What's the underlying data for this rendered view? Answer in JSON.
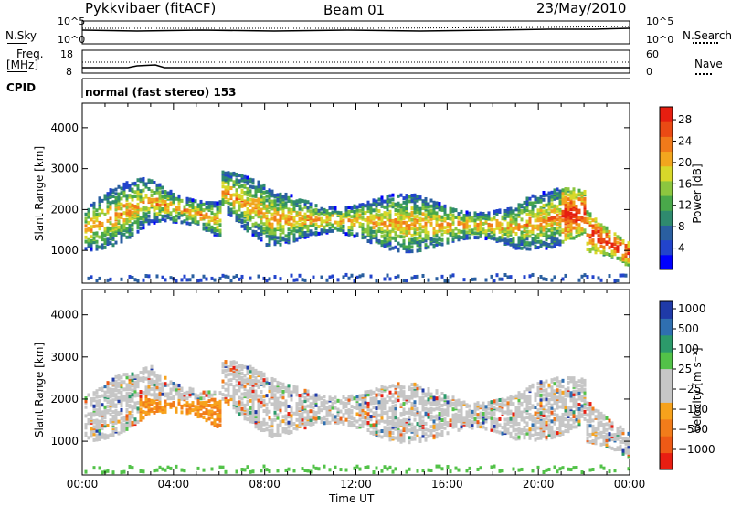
{
  "header": {
    "title": "Pykkvibaer (fitACF)",
    "beam": "Beam 01",
    "date": "23/May/2010"
  },
  "top_panels": {
    "nsky_label": "N.Sky",
    "nsky_ticks": [
      "10^5",
      "10^0"
    ],
    "nsearch_label": "N.Search",
    "nsearch_ticks": [
      "10^5",
      "10^0"
    ],
    "freq_label_line1": "Freq.",
    "freq_label_line2": "[MHz]",
    "freq_ticks": [
      "18",
      "8"
    ],
    "nave_label": "Nave",
    "nave_ticks": [
      "60",
      "0"
    ],
    "cpid_label": "CPID",
    "cpid_text": "normal (fast stereo) 153"
  },
  "chart_data": [
    {
      "type": "heatmap",
      "name": "Power",
      "ylabel": "Slant Range [km]",
      "yticks": [
        "1000",
        "2000",
        "3000",
        "4000"
      ],
      "ylim": [
        200,
        4600
      ],
      "colorbar_label": "Power [dB]",
      "colorbar_ticks": [
        "4",
        "8",
        "12",
        "16",
        "20",
        "24",
        "28"
      ],
      "colorbar_colors": [
        "#0000ff",
        "#2244cc",
        "#2a5fa0",
        "#2f8a6e",
        "#49a84a",
        "#8cc63f",
        "#d8d82a",
        "#f2a61e",
        "#f07a1a",
        "#ea4a14",
        "#e61e10"
      ],
      "range": [
        0,
        30
      ]
    },
    {
      "type": "heatmap",
      "name": "Velocity",
      "ylabel": "Slant Range [km]",
      "yticks": [
        "1000",
        "2000",
        "3000",
        "4000"
      ],
      "ylim": [
        200,
        4600
      ],
      "colorbar_label": "Velocity [m s⁻¹]",
      "colorbar_ticks": [
        "1000",
        "500",
        "100",
        "25",
        "−25",
        "−100",
        "−500",
        "−1000"
      ],
      "colorbar_colors": [
        "#1f3aa8",
        "#2f6fb0",
        "#2c9a6a",
        "#52c248",
        "#c6c6c6",
        "#c6c6c6",
        "#f7a21c",
        "#f27c1a",
        "#ee5a16",
        "#e81e12"
      ],
      "range": [
        -1000,
        1000
      ]
    }
  ],
  "xaxis": {
    "ticks": [
      "00:00",
      "04:00",
      "08:00",
      "12:00",
      "16:00",
      "20:00",
      "00:00"
    ],
    "label": "Time UT"
  }
}
